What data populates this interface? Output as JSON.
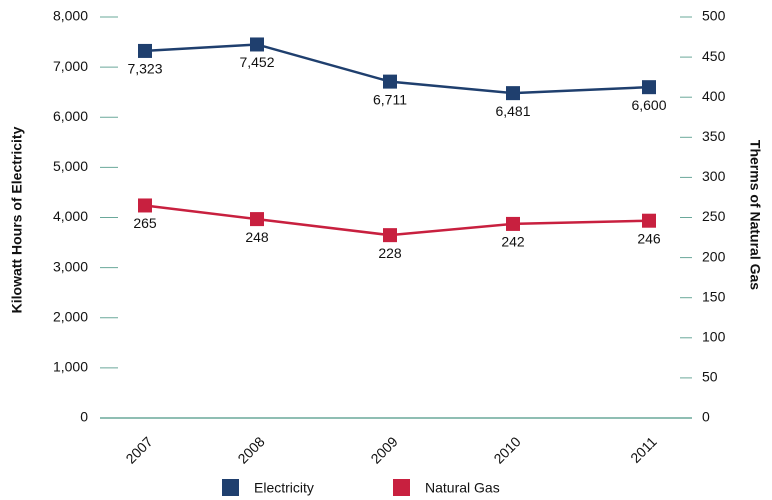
{
  "chart_data": {
    "type": "line",
    "categories": [
      "2007",
      "2008",
      "2009",
      "2010",
      "2011"
    ],
    "ylabel": "Kilowatt Hours of Electricity",
    "y2label": "Therms of Natural Gas",
    "series": [
      {
        "name": "Electricity",
        "color": "#1f3f6e",
        "values": [
          7323,
          7452,
          6711,
          6481,
          6600
        ],
        "value_labels": [
          "7,323",
          "7,452",
          "6,711",
          "6,481",
          "6,600"
        ]
      },
      {
        "name": "Natural Gas",
        "color": "#c8203f",
        "axis": "y2",
        "values": [
          265,
          248,
          228,
          242,
          246
        ]
      }
    ],
    "ylim": [
      0,
      8000
    ],
    "yticks": [
      0,
      {
        "value": 1000,
        "label": "1,000"
      },
      {
        "value": 2000,
        "label": "2,000"
      },
      {
        "value": 3000,
        "label": "3,000"
      },
      {
        "value": 4000,
        "label": "4,000"
      },
      {
        "value": 5000,
        "label": "5,000"
      },
      {
        "value": 6000,
        "label": "6,000"
      },
      {
        "value": 7000,
        "label": "7,000"
      },
      {
        "value": 8000,
        "label": "8,000"
      }
    ],
    "y2lim": [
      0,
      500
    ],
    "y2ticks": [
      0,
      50,
      100,
      150,
      200,
      250,
      300,
      350,
      400,
      450,
      500
    ],
    "legend": "bottom"
  }
}
